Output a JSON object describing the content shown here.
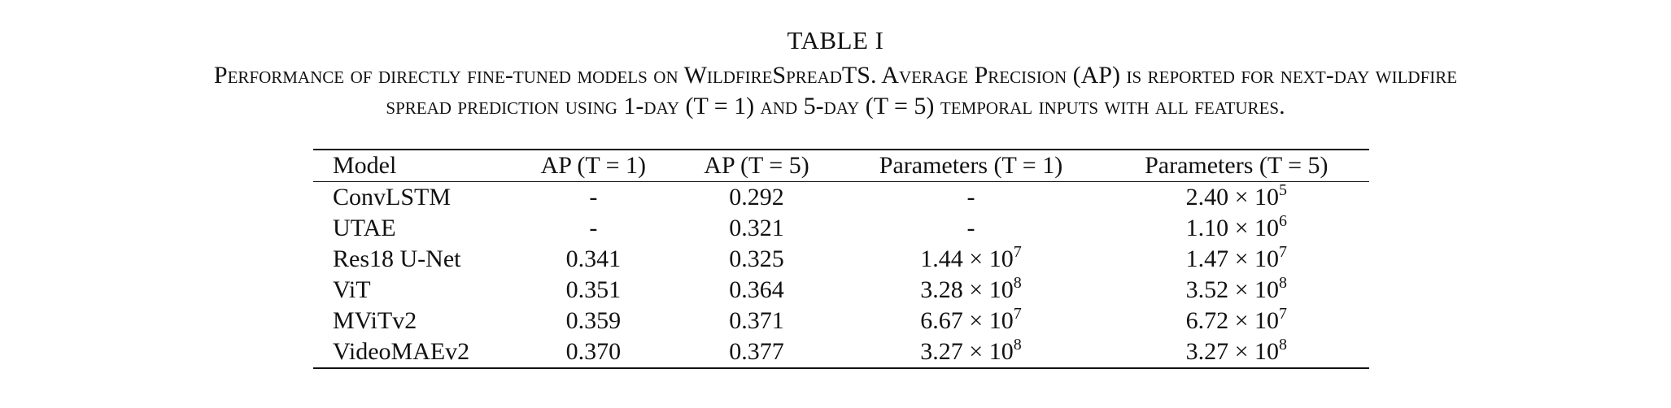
{
  "caption": {
    "table_label": "TABLE I",
    "line1": "Performance of directly fine-tuned models on WildfireSpreadTS. Average Precision (AP) is reported for next-day wildfire",
    "line2": "spread prediction using 1-day (T = 1) and 5-day (T = 5) temporal inputs with all features."
  },
  "table": {
    "headers": [
      "Model",
      "AP (T = 1)",
      "AP (T = 5)",
      "Parameters (T = 1)",
      "Parameters (T = 5)"
    ],
    "rows": [
      {
        "model": "ConvLSTM",
        "ap1": "-",
        "ap5": "0.292",
        "p1": "-",
        "p5": "2.40 × 10^5"
      },
      {
        "model": "UTAE",
        "ap1": "-",
        "ap5": "0.321",
        "p1": "-",
        "p5": "1.10 × 10^6"
      },
      {
        "model": "Res18 U-Net",
        "ap1": "0.341",
        "ap5": "0.325",
        "p1": "1.44 × 10^7",
        "p5": "1.47 × 10^7"
      },
      {
        "model": "ViT",
        "ap1": "0.351",
        "ap5": "0.364",
        "p1": "3.28 × 10^8",
        "p5": "3.52 × 10^8"
      },
      {
        "model": "MViTv2",
        "ap1": "0.359",
        "ap5": "0.371",
        "p1": "6.67 × 10^7",
        "p5": "6.72 × 10^7"
      },
      {
        "model": "VideoMAEv2",
        "ap1": "0.370",
        "ap5": "0.377",
        "p1": "3.27 × 10^8",
        "p5": "3.27 × 10^8"
      }
    ]
  }
}
